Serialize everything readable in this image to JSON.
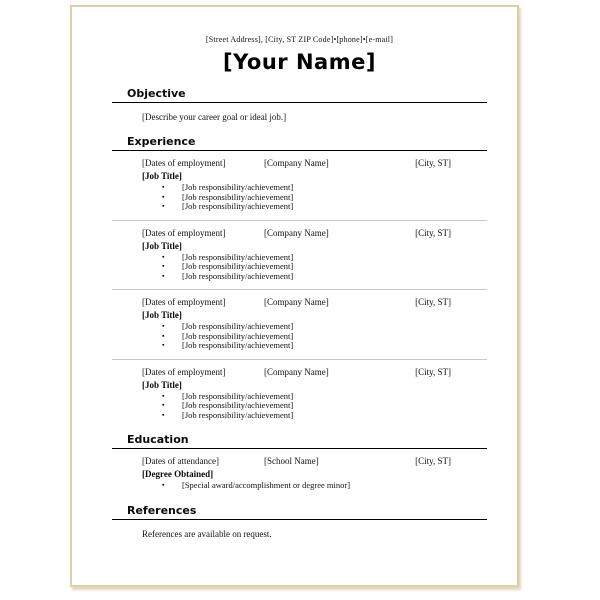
{
  "icons": {
    "bullet": "▪"
  },
  "colors": {
    "page_border": "#ddcfa8",
    "heading_rule": "#000000",
    "entry_separator": "#c8c8c8",
    "page_background": "#ffffff"
  },
  "header": {
    "contact_line": "[Street Address], [City, ST ZIP Code]•[phone]•[e-mail]",
    "name": "[Your Name]"
  },
  "sections": {
    "objective": {
      "heading": "Objective",
      "body": "[Describe your career goal or ideal job.]"
    },
    "experience": {
      "heading": "Experience",
      "entries": [
        {
          "dates": "[Dates of employment]",
          "company": "[Company Name]",
          "city": "[City, ST]",
          "job_title": "[Job Title]",
          "bullets": [
            "[Job responsibility/achievement]",
            "[Job responsibility/achievement]",
            "[Job responsibility/achievement]"
          ]
        },
        {
          "dates": "[Dates of employment]",
          "company": "[Company Name]",
          "city": "[City, ST]",
          "job_title": "[Job Title]",
          "bullets": [
            "[Job responsibility/achievement]",
            "[Job responsibility/achievement]",
            "[Job responsibility/achievement]"
          ]
        },
        {
          "dates": "[Dates of employment]",
          "company": "[Company Name]",
          "city": "[City, ST]",
          "job_title": "[Job Title]",
          "bullets": [
            "[Job responsibility/achievement]",
            "[Job responsibility/achievement]",
            "[Job responsibility/achievement]"
          ]
        },
        {
          "dates": "[Dates of employment]",
          "company": "[Company Name]",
          "city": "[City, ST]",
          "job_title": "[Job Title]",
          "bullets": [
            "[Job responsibility/achievement]",
            "[Job responsibility/achievement]",
            "[Job responsibility/achievement]"
          ]
        }
      ]
    },
    "education": {
      "heading": "Education",
      "dates": "[Dates of attendance]",
      "school": "[School Name]",
      "city": "[City, ST]",
      "degree": "[Degree Obtained]",
      "bullet": "[Special award/accomplishment or degree minor]"
    },
    "references": {
      "heading": "References",
      "body": "References are available on request."
    }
  }
}
